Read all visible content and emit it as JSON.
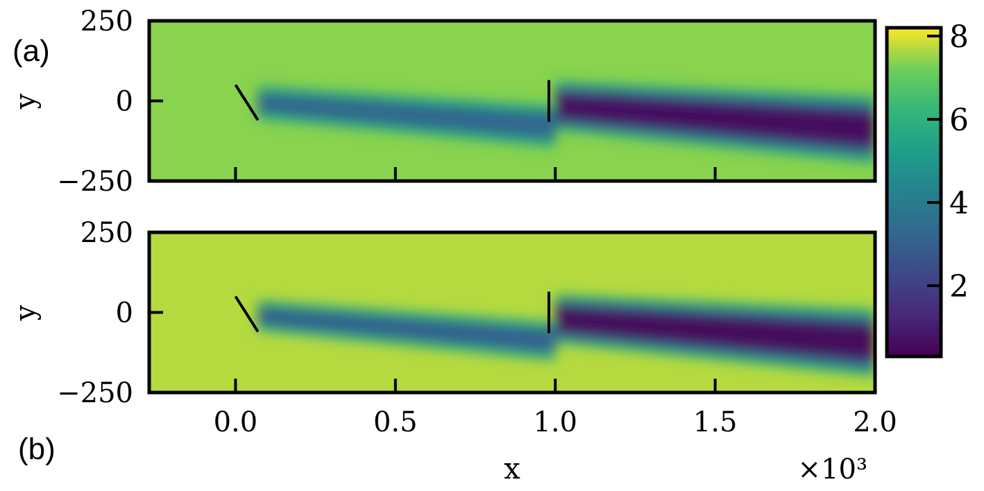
{
  "chart_data": {
    "type": "heatmap",
    "xlabel": "x",
    "x_scale_note": "×10³",
    "xlim": [
      -0.27,
      2.0
    ],
    "x_ticks": [
      "0.0",
      "0.5",
      "1.0",
      "1.5",
      "2.0"
    ],
    "x_tick_values": [
      0.0,
      0.5,
      1.0,
      1.5,
      2.0
    ],
    "ylim": [
      -250,
      250
    ],
    "colorbar": {
      "colormap": "viridis",
      "range": [
        0.3,
        8.2
      ],
      "ticks": [
        "2",
        "4",
        "6",
        "8"
      ],
      "tick_values": [
        2,
        4,
        6,
        8
      ]
    },
    "panels": [
      {
        "panel_label": "(a)",
        "ylabel": "y",
        "y_ticks": [
          "250",
          "0",
          "−250"
        ],
        "y_tick_values": [
          250,
          0,
          -250
        ],
        "background_value": 7.4,
        "wakes": [
          {
            "x_start": 0.07,
            "x_end": 1.0,
            "y_center_start": -5,
            "y_center_end": -80,
            "half_width": 60,
            "min_value": 3.2
          },
          {
            "x_start": 1.0,
            "x_end": 2.0,
            "y_center_start": -15,
            "y_center_end": -90,
            "half_width": 85,
            "min_value": 0.6
          }
        ],
        "turbines": [
          {
            "x": 0.0,
            "y": 50,
            "x2": 0.07,
            "y2": -60
          },
          {
            "x": 0.98,
            "y": 65,
            "x2": 0.98,
            "y2": -65
          }
        ]
      },
      {
        "panel_label": "(b)",
        "ylabel": "y",
        "y_ticks": [
          "250",
          "0",
          "−250"
        ],
        "y_tick_values": [
          250,
          0,
          -250
        ],
        "background_value": 7.7,
        "wakes": [
          {
            "x_start": 0.07,
            "x_end": 1.0,
            "y_center_start": -10,
            "y_center_end": -90,
            "half_width": 55,
            "min_value": 3.0
          },
          {
            "x_start": 1.0,
            "x_end": 2.0,
            "y_center_start": -20,
            "y_center_end": -95,
            "half_width": 85,
            "min_value": 0.5
          }
        ],
        "turbines": [
          {
            "x": 0.0,
            "y": 50,
            "x2": 0.07,
            "y2": -60
          },
          {
            "x": 0.98,
            "y": 65,
            "x2": 0.98,
            "y2": -65
          }
        ]
      }
    ]
  }
}
